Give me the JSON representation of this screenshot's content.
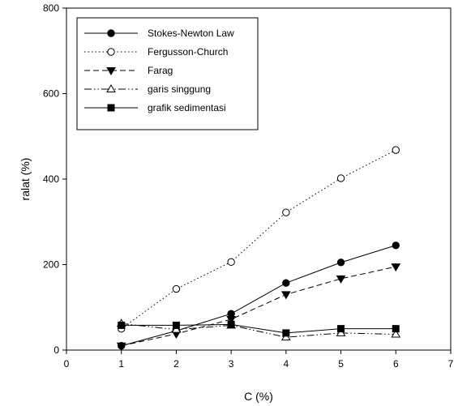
{
  "chart_data": {
    "type": "line",
    "title": "",
    "xlabel": "C (%)",
    "ylabel": "ralat (%)",
    "xlim": [
      0,
      7
    ],
    "ylim": [
      0,
      800
    ],
    "xticks": [
      0,
      1,
      2,
      3,
      4,
      5,
      6,
      7
    ],
    "yticks": [
      0,
      200,
      400,
      600,
      800
    ],
    "legend_position": "top-left",
    "grid": false,
    "series": [
      {
        "name": "Stokes-Newton Law",
        "line": "solid",
        "marker": "circle-filled",
        "color": "#000000",
        "x": [
          1,
          2,
          3,
          4,
          5,
          6
        ],
        "y": [
          10,
          45,
          85,
          157,
          205,
          245
        ]
      },
      {
        "name": "Fergusson-Church",
        "line": "dotted",
        "marker": "circle-open",
        "color": "#000000",
        "x": [
          1,
          2,
          3,
          4,
          5,
          6
        ],
        "y": [
          50,
          143,
          206,
          322,
          402,
          468
        ]
      },
      {
        "name": "Farag",
        "line": "dashed",
        "marker": "triangle-down-filled",
        "color": "#000000",
        "x": [
          1,
          2,
          3,
          4,
          5,
          6
        ],
        "y": [
          10,
          38,
          72,
          130,
          167,
          195
        ]
      },
      {
        "name": "garis singgung",
        "line": "dash-dot-dot",
        "marker": "triangle-up-open",
        "color": "#000000",
        "x": [
          1,
          2,
          3,
          4,
          5,
          6
        ],
        "y": [
          62,
          48,
          58,
          30,
          40,
          37
        ]
      },
      {
        "name": "grafik sedimentasi",
        "line": "solid",
        "marker": "square-filled",
        "color": "#000000",
        "x": [
          1,
          2,
          3,
          4,
          5,
          6
        ],
        "y": [
          58,
          58,
          60,
          40,
          50,
          50
        ]
      }
    ]
  }
}
